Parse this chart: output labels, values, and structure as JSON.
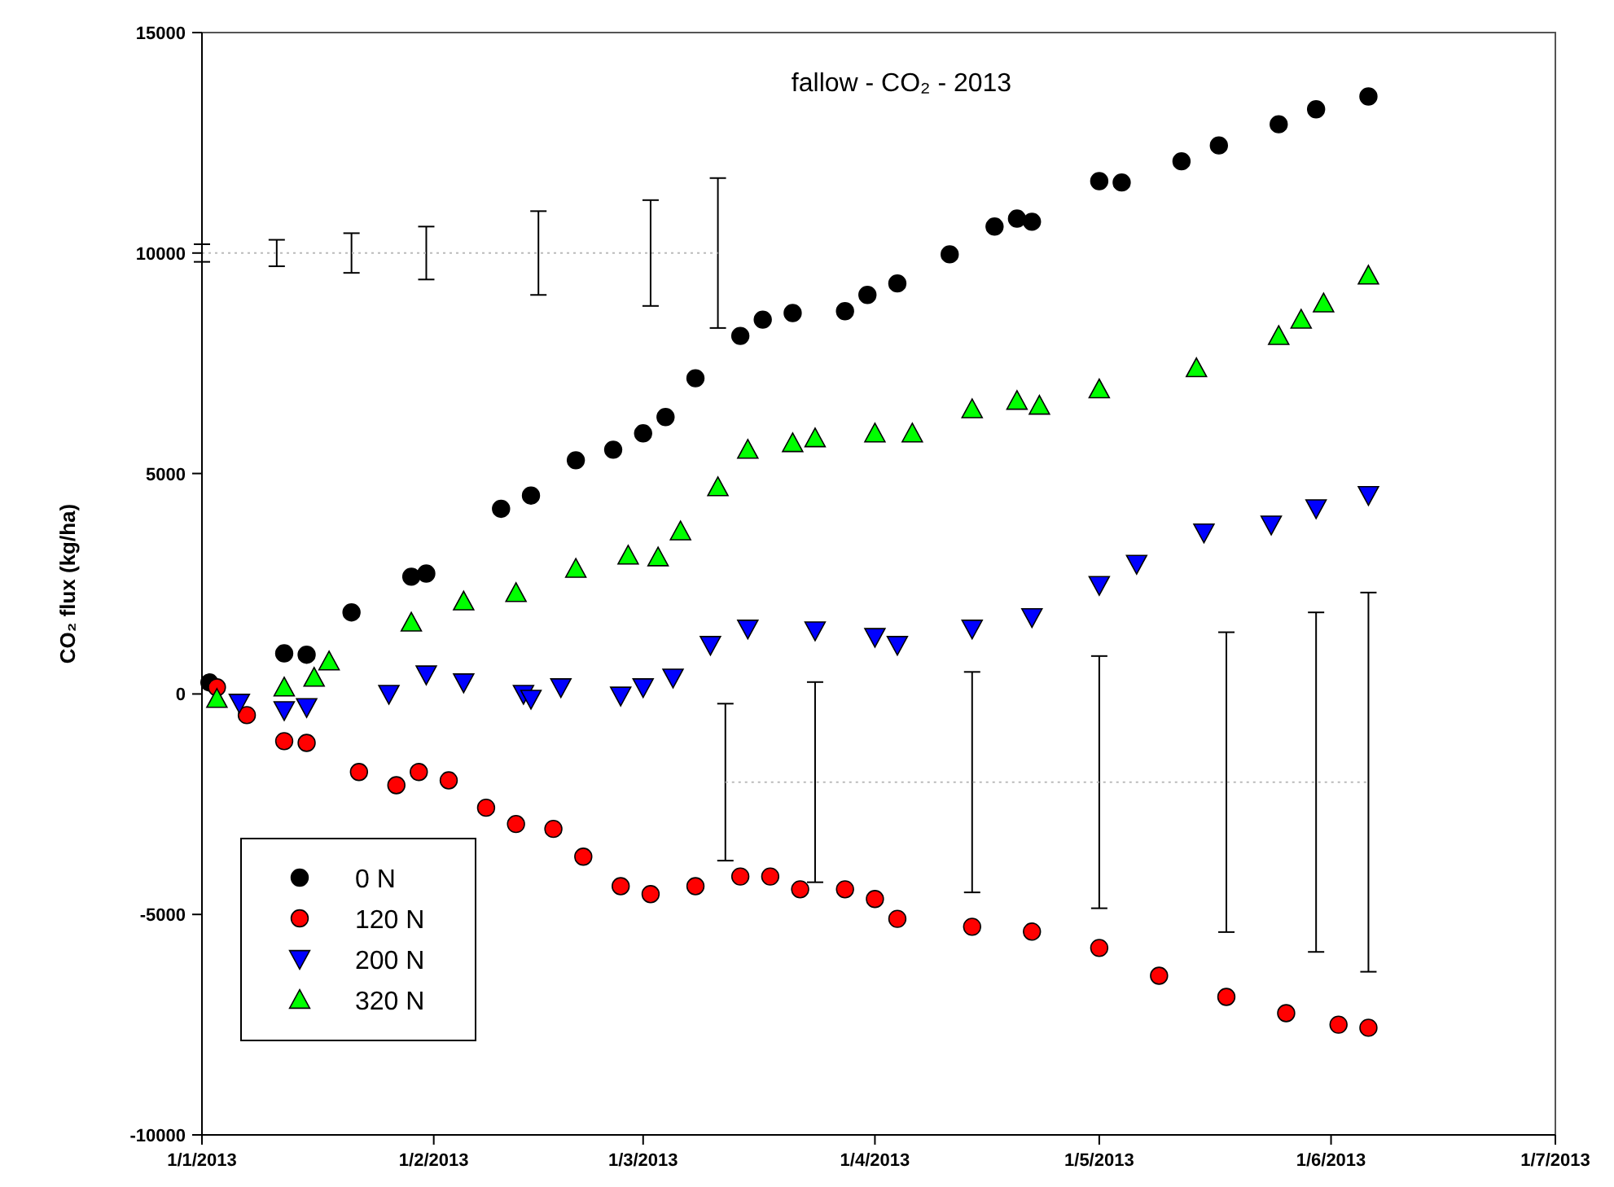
{
  "chart_data": {
    "type": "scatter",
    "title": "fallow - CO₂ - 2013",
    "ylabel": "CO₂ flux  (kg/ha)",
    "xlim": [
      "2013-01-01",
      "2013-07-01"
    ],
    "xticks": [
      {
        "value": "2013-01-01",
        "label": "1/1/2013"
      },
      {
        "value": "2013-02-01",
        "label": "1/2/2013"
      },
      {
        "value": "2013-03-01",
        "label": "1/3/2013"
      },
      {
        "value": "2013-04-01",
        "label": "1/4/2013"
      },
      {
        "value": "2013-05-01",
        "label": "1/5/2013"
      },
      {
        "value": "2013-06-01",
        "label": "1/6/2013"
      },
      {
        "value": "2013-07-01",
        "label": "1/7/2013"
      }
    ],
    "ylim": [
      -10000,
      15000
    ],
    "yticks": [
      -10000,
      -5000,
      0,
      5000,
      10000,
      15000
    ],
    "grid": false,
    "legend": "bottom left",
    "series": [
      {
        "name": "0 N",
        "color": "#000000",
        "marker": "circle",
        "x": [
          "2013-01-02",
          "2013-01-12",
          "2013-01-15",
          "2013-01-21",
          "2013-01-29",
          "2013-01-31",
          "2013-02-10",
          "2013-02-14",
          "2013-02-20",
          "2013-02-25",
          "2013-03-01",
          "2013-03-04",
          "2013-03-08",
          "2013-03-14",
          "2013-03-17",
          "2013-03-21",
          "2013-03-28",
          "2013-03-31",
          "2013-04-04",
          "2013-04-11",
          "2013-04-17",
          "2013-04-20",
          "2013-04-22",
          "2013-05-01",
          "2013-05-04",
          "2013-05-12",
          "2013-05-17",
          "2013-05-25",
          "2013-05-30",
          "2013-06-06"
        ],
        "values": [
          260,
          920,
          890,
          1850,
          2660,
          2730,
          4200,
          4500,
          5300,
          5540,
          5910,
          6280,
          7160,
          8120,
          8490,
          8640,
          8680,
          9050,
          9310,
          9970,
          10600,
          10780,
          10710,
          11630,
          11600,
          12080,
          12440,
          12920,
          13260,
          13550
        ]
      },
      {
        "name": "120 N",
        "color": "#ff0000",
        "marker": "circle",
        "x": [
          "2013-01-03",
          "2013-01-07",
          "2013-01-12",
          "2013-01-15",
          "2013-01-22",
          "2013-01-27",
          "2013-01-30",
          "2013-02-03",
          "2013-02-08",
          "2013-02-12",
          "2013-02-17",
          "2013-02-21",
          "2013-02-26",
          "2013-03-02",
          "2013-03-08",
          "2013-03-14",
          "2013-03-18",
          "2013-03-22",
          "2013-03-28",
          "2013-04-01",
          "2013-04-04",
          "2013-04-14",
          "2013-04-22",
          "2013-05-01",
          "2013-05-09",
          "2013-05-18",
          "2013-05-26",
          "2013-06-02",
          "2013-06-06"
        ],
        "values": [
          150,
          -480,
          -1070,
          -1110,
          -1770,
          -2070,
          -1770,
          -1960,
          -2580,
          -2950,
          -3060,
          -3690,
          -4360,
          -4540,
          -4360,
          -4140,
          -4140,
          -4430,
          -4430,
          -4650,
          -5100,
          -5280,
          -5390,
          -5760,
          -6390,
          -6870,
          -7240,
          -7500,
          -7570
        ]
      },
      {
        "name": "200 N",
        "color": "#0000ff",
        "marker": "triangle-down",
        "x": [
          "2013-01-06",
          "2013-01-12",
          "2013-01-15",
          "2013-01-26",
          "2013-01-31",
          "2013-02-05",
          "2013-02-13",
          "2013-02-14",
          "2013-02-18",
          "2013-02-26",
          "2013-03-01",
          "2013-03-05",
          "2013-03-10",
          "2013-03-15",
          "2013-03-24",
          "2013-04-01",
          "2013-04-04",
          "2013-04-14",
          "2013-04-22",
          "2013-05-01",
          "2013-05-06",
          "2013-05-15",
          "2013-05-24",
          "2013-05-30",
          "2013-06-06"
        ],
        "values": [
          -200,
          -370,
          -300,
          0,
          440,
          260,
          0,
          -110,
          150,
          -40,
          150,
          370,
          1110,
          1480,
          1440,
          1290,
          1110,
          1480,
          1740,
          2470,
          2950,
          3660,
          3840,
          4210,
          4510
        ]
      },
      {
        "name": "320 N",
        "color": "#00ff00",
        "marker": "triangle",
        "x": [
          "2013-01-03",
          "2013-01-12",
          "2013-01-16",
          "2013-01-18",
          "2013-01-29",
          "2013-02-05",
          "2013-02-12",
          "2013-02-20",
          "2013-02-27",
          "2013-03-03",
          "2013-03-06",
          "2013-03-11",
          "2013-03-15",
          "2013-03-21",
          "2013-03-24",
          "2013-04-01",
          "2013-04-06",
          "2013-04-14",
          "2013-04-20",
          "2013-04-23",
          "2013-05-01",
          "2013-05-14",
          "2013-05-25",
          "2013-05-28",
          "2013-05-31",
          "2013-06-06"
        ],
        "values": [
          -110,
          150,
          370,
          740,
          1620,
          2100,
          2290,
          2840,
          3140,
          3100,
          3690,
          4690,
          5540,
          5690,
          5800,
          5910,
          5910,
          6460,
          6650,
          6540,
          6910,
          7390,
          8120,
          8490,
          8860,
          9490
        ]
      },
      {
        "type": "line",
        "color": "#bbbbbb",
        "marker": "none",
        "line_style": "dotted",
        "x": [
          "2013-01-01",
          "2013-01-11",
          "2013-01-21",
          "2013-01-31",
          "2013-02-15",
          "2013-03-02",
          "2013-03-11"
        ],
        "values": [
          10000,
          10000,
          10000,
          10000,
          10000,
          10000,
          10000
        ],
        "errors": [
          200,
          300,
          450,
          600,
          950,
          1200,
          1700
        ]
      },
      {
        "type": "line",
        "color": "#bbbbbb",
        "marker": "none",
        "line_style": "dotted",
        "x": [
          "2013-03-12",
          "2013-03-24",
          "2013-04-14",
          "2013-05-01",
          "2013-05-18",
          "2013-05-30",
          "2013-06-06"
        ],
        "values": [
          -2000,
          -2000,
          -2000,
          -2000,
          -2000,
          -2000,
          -2000
        ],
        "errors": [
          1780,
          2270,
          2500,
          2860,
          3400,
          3850,
          4300
        ]
      }
    ]
  }
}
